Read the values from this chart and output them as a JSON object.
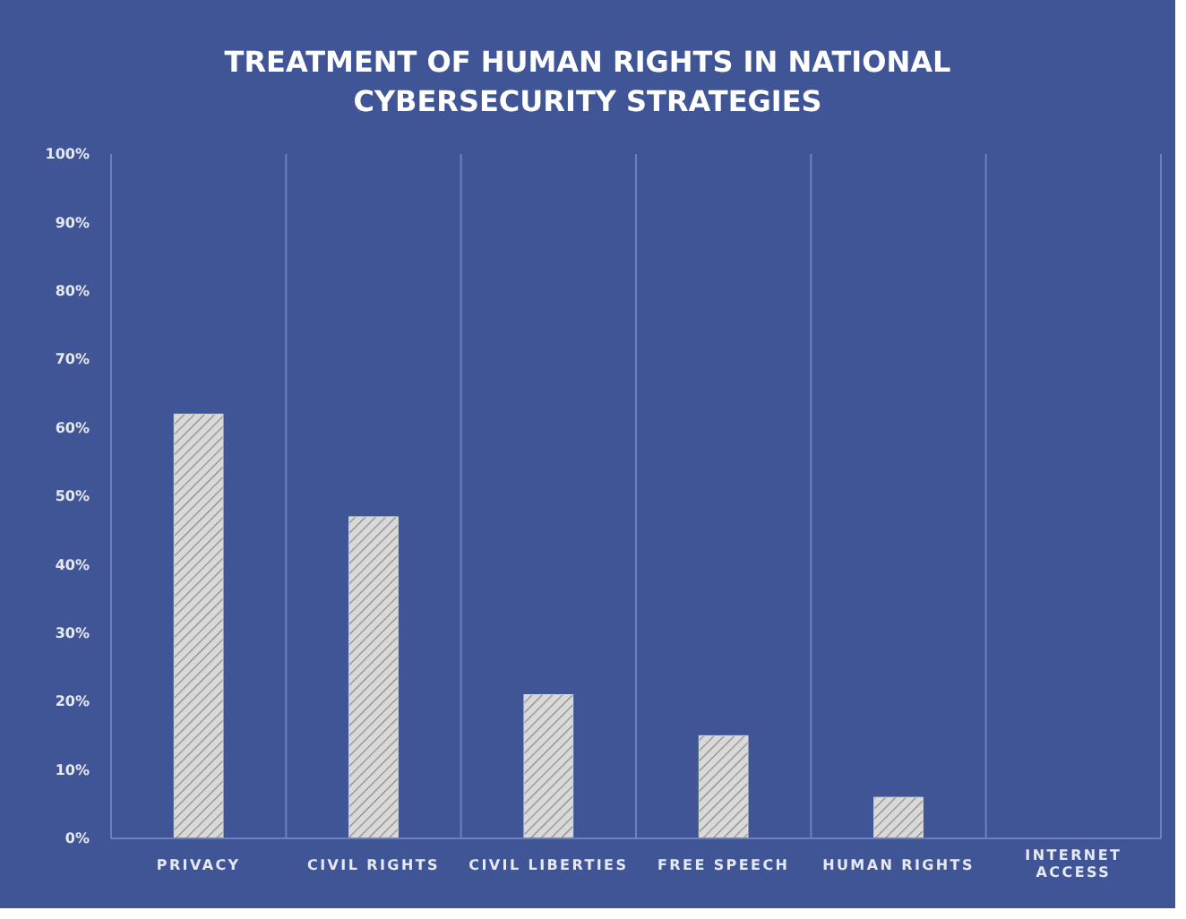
{
  "chart_data": {
    "type": "bar",
    "title": "TREATMENT OF HUMAN RIGHTS IN NATIONAL CYBERSECURITY STRATEGIES",
    "categories": [
      "PRIVACY",
      "CIVIL RIGHTS",
      "CIVIL LIBERTIES",
      "FREE SPEECH",
      "HUMAN RIGHTS",
      "INTERNET ACCESS"
    ],
    "values": [
      62,
      47,
      21,
      15,
      6,
      0
    ],
    "color": "#d9d9d9",
    "ylim": [
      0,
      100
    ],
    "yticks": [
      {
        "value": 0,
        "label": "0%"
      },
      {
        "value": 10,
        "label": "10%"
      },
      {
        "value": 20,
        "label": "20%"
      },
      {
        "value": 30,
        "label": "30%"
      },
      {
        "value": 40,
        "label": "40%"
      },
      {
        "value": 50,
        "label": "50%"
      },
      {
        "value": 60,
        "label": "60%"
      },
      {
        "value": 70,
        "label": "70%"
      },
      {
        "value": 80,
        "label": "80%"
      },
      {
        "value": 90,
        "label": "90%"
      },
      {
        "value": 100,
        "label": "100%"
      }
    ],
    "grid": "x"
  }
}
